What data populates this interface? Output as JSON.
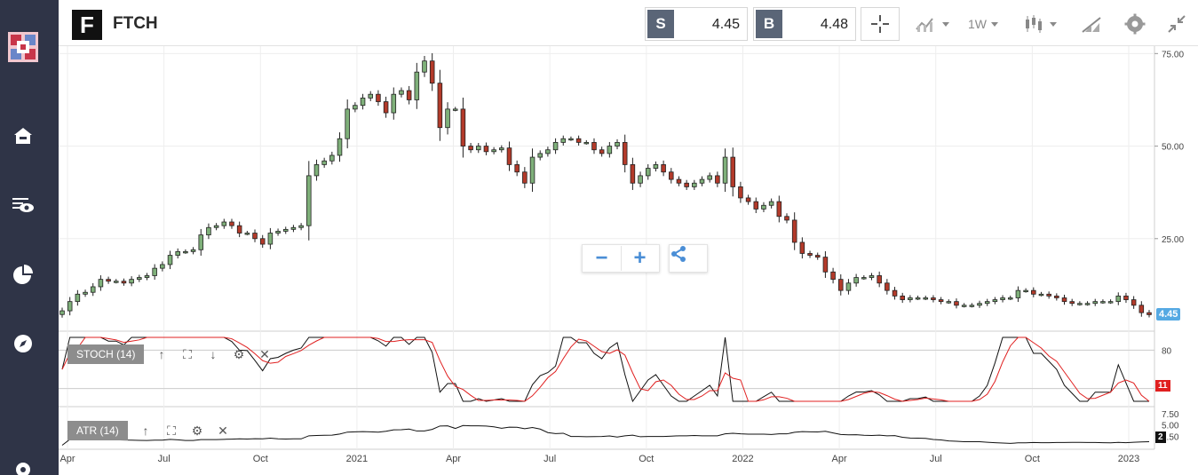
{
  "instrument": {
    "logo_letter": "F",
    "ticker": "FTCH"
  },
  "quotes": {
    "sell_label": "S",
    "sell_value": "4.45",
    "buy_label": "B",
    "buy_value": "4.48"
  },
  "toolbar": {
    "interval_label": "1W"
  },
  "price_axis": {
    "ticks": [
      "75.00",
      "50.00",
      "25.00"
    ],
    "current_price": "4.45"
  },
  "indicators": {
    "stoch": {
      "label": "STOCH (14)",
      "ticks": [
        "80"
      ],
      "value_tag": "11",
      "value_tag_color": "#e02020"
    },
    "atr": {
      "label": "ATR (14)",
      "ticks": [
        "7.50",
        "5.00",
        "2.50"
      ],
      "value_tag": "2",
      "value_tag_color": "#111111"
    }
  },
  "time_axis": [
    "Apr",
    "Jul",
    "Oct",
    "2021",
    "Apr",
    "Jul",
    "Oct",
    "2022",
    "Apr",
    "Jul",
    "Oct",
    "2023"
  ],
  "colors": {
    "up": "#7fb07a",
    "down": "#b33a2a",
    "sidebar": "#2f3447",
    "accent": "#55a9e3"
  },
  "chart_data": {
    "type": "candlestick",
    "interval": "1W",
    "ylim": [
      0,
      77
    ],
    "close": [
      5.5,
      8,
      10,
      10.5,
      12,
      14,
      13.5,
      13.5,
      13,
      14,
      14.5,
      15,
      17,
      18,
      20.5,
      21.5,
      21.5,
      22,
      26,
      28,
      28.5,
      29.5,
      28.5,
      26.5,
      26.5,
      25,
      23.5,
      26.5,
      27,
      27.5,
      28,
      28.5,
      42,
      45,
      46,
      47.5,
      52,
      60,
      61,
      63,
      64,
      62,
      59,
      64,
      65,
      62.5,
      70,
      73,
      67,
      55,
      60,
      60,
      50,
      49,
      50,
      48.5,
      49,
      49.5,
      45,
      43,
      40,
      47,
      48,
      49,
      51,
      52,
      52,
      51,
      51,
      49,
      48,
      50,
      51,
      45,
      40,
      42,
      44,
      45,
      43,
      41,
      40,
      39,
      40,
      41,
      42,
      40,
      47,
      39,
      36,
      35,
      33,
      34,
      35,
      31,
      30,
      24,
      21,
      20.5,
      20,
      16,
      14,
      11,
      13,
      14.5,
      14.5,
      15,
      13,
      11,
      9.5,
      8.5,
      9,
      9,
      9,
      8.5,
      8,
      8,
      7,
      7,
      7,
      7.5,
      8,
      8.5,
      9,
      9,
      11,
      11,
      10,
      10,
      9.5,
      9,
      8,
      7.5,
      7.5,
      7.5,
      8,
      8,
      8,
      9.5,
      8.5,
      7,
      5,
      4.45
    ]
  }
}
